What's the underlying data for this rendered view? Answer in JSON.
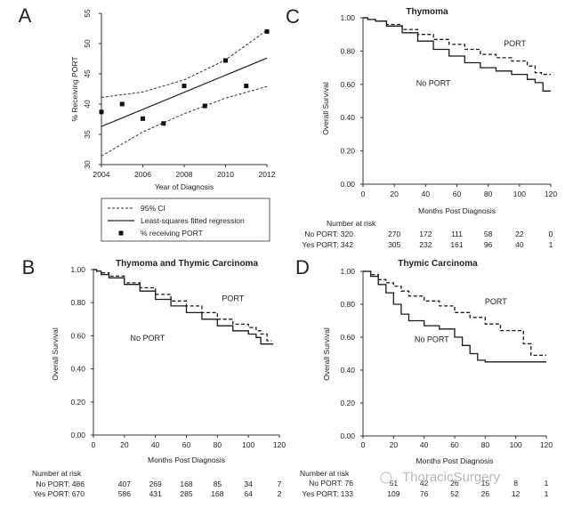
{
  "figure": {
    "watermark": "ThoracicSurgery"
  },
  "chart_data": [
    {
      "panel": "A",
      "type": "scatter",
      "title": "",
      "xlabel": "Year of Diagnosis",
      "ylabel": "% Receiving PORT",
      "xlim": [
        2004,
        2012
      ],
      "ylim": [
        30,
        55
      ],
      "x_ticks": [
        2004,
        2006,
        2008,
        2010,
        2012
      ],
      "y_ticks": [
        30,
        35,
        40,
        45,
        50,
        55
      ],
      "points": [
        {
          "x": 2004,
          "y": 38.7
        },
        {
          "x": 2005,
          "y": 40.0
        },
        {
          "x": 2006,
          "y": 37.6
        },
        {
          "x": 2007,
          "y": 36.8
        },
        {
          "x": 2008,
          "y": 43.0
        },
        {
          "x": 2009,
          "y": 39.7
        },
        {
          "x": 2010,
          "y": 47.2
        },
        {
          "x": 2011,
          "y": 43.0
        },
        {
          "x": 2012,
          "y": 52.0
        }
      ],
      "fit_line": [
        {
          "x": 2004,
          "y": 36.3
        },
        {
          "x": 2012,
          "y": 47.6
        }
      ],
      "ci_upper": [
        {
          "x": 2004,
          "y": 41.1
        },
        {
          "x": 2006,
          "y": 42.0
        },
        {
          "x": 2008,
          "y": 44.0
        },
        {
          "x": 2010,
          "y": 47.3
        },
        {
          "x": 2012,
          "y": 52.2
        }
      ],
      "ci_lower": [
        {
          "x": 2004,
          "y": 31.4
        },
        {
          "x": 2006,
          "y": 35.4
        },
        {
          "x": 2008,
          "y": 38.4
        },
        {
          "x": 2010,
          "y": 41.0
        },
        {
          "x": 2012,
          "y": 42.9
        }
      ],
      "legend": {
        "position": "below",
        "items": [
          {
            "style": "dashed",
            "label": "95% CI"
          },
          {
            "style": "solid",
            "label": "Least-squares fitted regression"
          },
          {
            "style": "square",
            "label": "% receiving PORT"
          }
        ]
      }
    },
    {
      "panel": "B",
      "type": "line",
      "title": "Thymoma and Thymic Carcinoma",
      "xlabel": "Months Post Diagnosis",
      "ylabel": "Overall Survival",
      "xlim": [
        0,
        120
      ],
      "ylim": [
        0,
        1
      ],
      "x_ticks": [
        0,
        20,
        40,
        60,
        80,
        100,
        120
      ],
      "y_ticks": [
        "0.00",
        "0.20",
        "0.40",
        "0.60",
        "0.80",
        "1.00"
      ],
      "series": [
        {
          "name": "PORT",
          "style": "dashed",
          "x": [
            0,
            2,
            5,
            10,
            20,
            30,
            40,
            50,
            60,
            70,
            80,
            90,
            100,
            105,
            108,
            112,
            115
          ],
          "y": [
            1.0,
            0.99,
            0.98,
            0.96,
            0.92,
            0.89,
            0.85,
            0.81,
            0.78,
            0.74,
            0.7,
            0.67,
            0.65,
            0.63,
            0.61,
            0.57,
            0.57
          ]
        },
        {
          "name": "No PORT",
          "style": "solid",
          "x": [
            0,
            2,
            5,
            10,
            20,
            30,
            40,
            50,
            60,
            70,
            80,
            90,
            100,
            105,
            108,
            112,
            116
          ],
          "y": [
            1.0,
            0.99,
            0.97,
            0.95,
            0.91,
            0.87,
            0.82,
            0.78,
            0.74,
            0.7,
            0.66,
            0.63,
            0.61,
            0.59,
            0.55,
            0.55,
            0.55
          ]
        }
      ],
      "annotations": [
        {
          "text": "PORT",
          "x": 90,
          "y": 0.81
        },
        {
          "text": "No PORT",
          "x": 35,
          "y": 0.57
        }
      ],
      "risk_table": {
        "header": "Number at risk",
        "rows": [
          {
            "label": "No PORT: 486",
            "values": [
              407,
              269,
              168,
              85,
              34,
              7
            ]
          },
          {
            "label": "Yes PORT: 670",
            "values": [
              586,
              431,
              285,
              168,
              64,
              2
            ]
          }
        ]
      }
    },
    {
      "panel": "C",
      "type": "line",
      "title": "Thymoma",
      "xlabel": "Months Post Diagnosis",
      "ylabel": "Overall Survival",
      "xlim": [
        0,
        120
      ],
      "ylim": [
        0,
        1
      ],
      "x_ticks": [
        0,
        20,
        40,
        60,
        80,
        100,
        120
      ],
      "y_ticks": [
        "0.00",
        "0.20",
        "0.40",
        "0.60",
        "0.80",
        "1.00"
      ],
      "series": [
        {
          "name": "PORT",
          "style": "dashed",
          "x": [
            0,
            3,
            8,
            15,
            25,
            35,
            45,
            55,
            65,
            75,
            85,
            95,
            105,
            110,
            114,
            120
          ],
          "y": [
            1.0,
            0.99,
            0.98,
            0.96,
            0.93,
            0.9,
            0.87,
            0.84,
            0.81,
            0.78,
            0.76,
            0.74,
            0.71,
            0.67,
            0.66,
            0.66
          ]
        },
        {
          "name": "No PORT",
          "style": "solid",
          "x": [
            0,
            3,
            8,
            15,
            25,
            35,
            45,
            55,
            65,
            75,
            85,
            95,
            105,
            110,
            115,
            120
          ],
          "y": [
            1.0,
            0.99,
            0.98,
            0.95,
            0.91,
            0.86,
            0.81,
            0.77,
            0.73,
            0.7,
            0.68,
            0.66,
            0.63,
            0.61,
            0.56,
            0.56
          ]
        }
      ],
      "annotations": [
        {
          "text": "PORT",
          "x": 97,
          "y": 0.83
        },
        {
          "text": "No PORT",
          "x": 45,
          "y": 0.59
        }
      ],
      "risk_table": {
        "header": "Number at risk",
        "rows": [
          {
            "label": "No PORT: 320",
            "values": [
              270,
              172,
              111,
              58,
              22,
              0
            ]
          },
          {
            "label": "Yes PORT: 342",
            "values": [
              305,
              232,
              161,
              96,
              40,
              1
            ]
          }
        ]
      }
    },
    {
      "panel": "D",
      "type": "line",
      "title": "Thymic Carcinoma",
      "xlabel": "Months Post Diagnosis",
      "ylabel": "Overall Survival",
      "xlim": [
        0,
        120
      ],
      "ylim": [
        0,
        1
      ],
      "x_ticks": [
        0,
        20,
        40,
        60,
        80,
        100,
        120
      ],
      "y_ticks": [
        "0.00",
        "0.20",
        "0.40",
        "0.60",
        "0.80",
        "1.00"
      ],
      "series": [
        {
          "name": "PORT",
          "style": "dashed",
          "x": [
            0,
            5,
            10,
            15,
            20,
            25,
            30,
            40,
            50,
            60,
            70,
            80,
            90,
            100,
            105,
            110,
            120
          ],
          "y": [
            1.0,
            0.98,
            0.95,
            0.93,
            0.91,
            0.88,
            0.85,
            0.82,
            0.79,
            0.75,
            0.72,
            0.68,
            0.64,
            0.64,
            0.56,
            0.49,
            0.49
          ]
        },
        {
          "name": "No PORT",
          "style": "solid",
          "x": [
            0,
            5,
            10,
            15,
            20,
            25,
            30,
            40,
            50,
            60,
            65,
            70,
            75,
            80,
            90,
            100,
            120
          ],
          "y": [
            1.0,
            0.97,
            0.92,
            0.87,
            0.8,
            0.74,
            0.7,
            0.67,
            0.65,
            0.6,
            0.55,
            0.5,
            0.46,
            0.45,
            0.45,
            0.45,
            0.45
          ]
        }
      ],
      "annotations": [
        {
          "text": "PORT",
          "x": 87,
          "y": 0.8
        },
        {
          "text": "No PORT",
          "x": 45,
          "y": 0.57
        }
      ],
      "risk_table": {
        "header": "Number at risk",
        "rows": [
          {
            "label": "No PORT: 76",
            "values": [
              51,
              42,
              26,
              15,
              8,
              1
            ]
          },
          {
            "label": "Yes PORT: 133",
            "values": [
              109,
              76,
              52,
              26,
              12,
              1
            ]
          }
        ]
      }
    }
  ]
}
